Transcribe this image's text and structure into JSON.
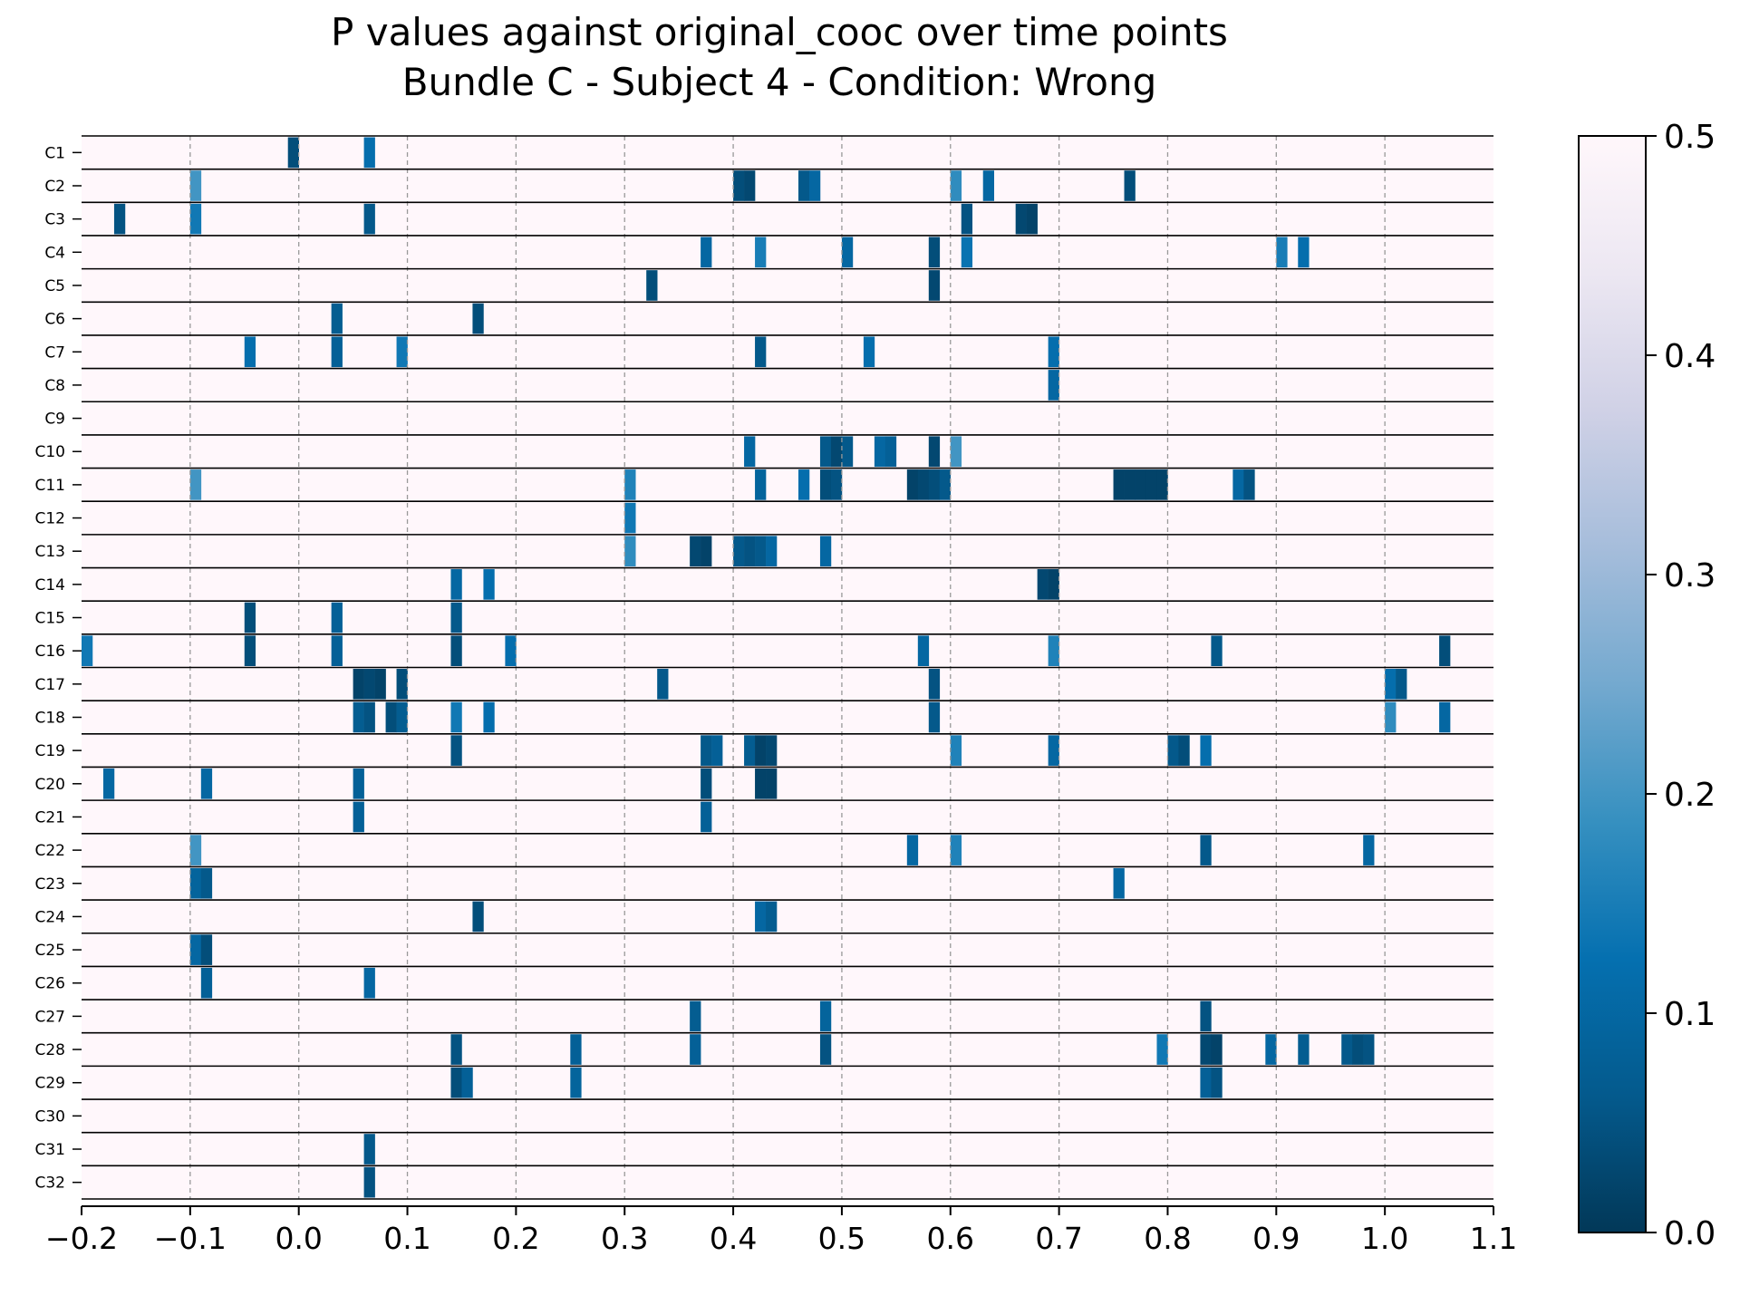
{
  "chart_data": {
    "type": "heatmap",
    "title": "P values against original_cooc over time points",
    "subtitle": "Bundle C - Subject 4 - Condition: Wrong",
    "xlabel": "",
    "ylabel": "",
    "xlim": [
      -0.2,
      1.1
    ],
    "x_ticks": [
      "−0.2",
      "−0.1",
      "0.0",
      "0.1",
      "0.2",
      "0.3",
      "0.4",
      "0.5",
      "0.6",
      "0.7",
      "0.8",
      "0.9",
      "1.0",
      "1.1"
    ],
    "x_tick_values": [
      -0.2,
      -0.1,
      0.0,
      0.1,
      0.2,
      0.3,
      0.4,
      0.5,
      0.6,
      0.7,
      0.8,
      0.9,
      1.0,
      1.1
    ],
    "vertical_gridlines": "dashed",
    "time_step": 0.01,
    "colorbar": {
      "range": [
        0.0,
        0.5
      ],
      "ticks": [
        "0.0",
        "0.1",
        "0.2",
        "0.3",
        "0.4",
        "0.5"
      ],
      "tick_values": [
        0.0,
        0.1,
        0.2,
        0.3,
        0.4,
        0.5
      ],
      "colormap": "PuBu_r",
      "colors": [
        "#023858",
        "#045a8d",
        "#0570b0",
        "#3690c0",
        "#74a9cf",
        "#a6bddb",
        "#d0d1e6",
        "#ece7f2",
        "#fff7fb"
      ],
      "placement": "right"
    },
    "background_value": 0.5,
    "rows": [
      {
        "label": "C1",
        "cells": [
          [
            -0.01,
            0.04
          ],
          [
            0.06,
            0.12
          ]
        ]
      },
      {
        "label": "C2",
        "cells": [
          [
            -0.1,
            0.2
          ],
          [
            0.4,
            0.04
          ],
          [
            0.41,
            0.03
          ],
          [
            0.46,
            0.06
          ],
          [
            0.47,
            0.1
          ],
          [
            0.6,
            0.18
          ],
          [
            0.63,
            0.1
          ],
          [
            0.76,
            0.04
          ]
        ]
      },
      {
        "label": "C3",
        "cells": [
          [
            -0.17,
            0.05
          ],
          [
            -0.1,
            0.14
          ],
          [
            0.06,
            0.06
          ],
          [
            0.61,
            0.05
          ],
          [
            0.66,
            0.03
          ],
          [
            0.67,
            0.02
          ]
        ]
      },
      {
        "label": "C4",
        "cells": [
          [
            0.37,
            0.1
          ],
          [
            0.42,
            0.15
          ],
          [
            0.5,
            0.1
          ],
          [
            0.58,
            0.04
          ],
          [
            0.61,
            0.13
          ],
          [
            0.9,
            0.15
          ],
          [
            0.92,
            0.12
          ]
        ]
      },
      {
        "label": "C5",
        "cells": [
          [
            0.32,
            0.04
          ],
          [
            0.58,
            0.03
          ]
        ]
      },
      {
        "label": "C6",
        "cells": [
          [
            0.03,
            0.07
          ],
          [
            0.16,
            0.04
          ]
        ]
      },
      {
        "label": "C7",
        "cells": [
          [
            -0.05,
            0.12
          ],
          [
            0.03,
            0.08
          ],
          [
            0.09,
            0.14
          ],
          [
            0.42,
            0.06
          ],
          [
            0.52,
            0.12
          ],
          [
            0.69,
            0.12
          ]
        ]
      },
      {
        "label": "C8",
        "cells": [
          [
            0.69,
            0.1
          ]
        ]
      },
      {
        "label": "C9",
        "cells": []
      },
      {
        "label": "C10",
        "cells": [
          [
            0.41,
            0.1
          ],
          [
            0.48,
            0.06
          ],
          [
            0.49,
            0.03
          ],
          [
            0.5,
            0.06
          ],
          [
            0.53,
            0.1
          ],
          [
            0.54,
            0.08
          ],
          [
            0.58,
            0.03
          ],
          [
            0.6,
            0.2
          ]
        ]
      },
      {
        "label": "C11",
        "cells": [
          [
            -0.1,
            0.2
          ],
          [
            0.3,
            0.16
          ],
          [
            0.42,
            0.09
          ],
          [
            0.46,
            0.12
          ],
          [
            0.48,
            0.04
          ],
          [
            0.49,
            0.05
          ],
          [
            0.56,
            0.02
          ],
          [
            0.57,
            0.03
          ],
          [
            0.58,
            0.04
          ],
          [
            0.59,
            0.06
          ],
          [
            0.75,
            0.02
          ],
          [
            0.76,
            0.02
          ],
          [
            0.77,
            0.02
          ],
          [
            0.78,
            0.02
          ],
          [
            0.79,
            0.02
          ],
          [
            0.86,
            0.1
          ],
          [
            0.87,
            0.05
          ]
        ]
      },
      {
        "label": "C12",
        "cells": [
          [
            0.3,
            0.14
          ]
        ]
      },
      {
        "label": "C13",
        "cells": [
          [
            0.3,
            0.18
          ],
          [
            0.36,
            0.03
          ],
          [
            0.37,
            0.02
          ],
          [
            0.4,
            0.06
          ],
          [
            0.41,
            0.05
          ],
          [
            0.42,
            0.06
          ],
          [
            0.43,
            0.1
          ],
          [
            0.48,
            0.1
          ]
        ]
      },
      {
        "label": "C14",
        "cells": [
          [
            0.14,
            0.1
          ],
          [
            0.17,
            0.12
          ],
          [
            0.68,
            0.03
          ],
          [
            0.69,
            0.02
          ]
        ]
      },
      {
        "label": "C15",
        "cells": [
          [
            -0.05,
            0.04
          ],
          [
            0.03,
            0.08
          ],
          [
            0.14,
            0.06
          ]
        ]
      },
      {
        "label": "C16",
        "cells": [
          [
            -0.2,
            0.14
          ],
          [
            -0.05,
            0.04
          ],
          [
            0.03,
            0.08
          ],
          [
            0.14,
            0.04
          ],
          [
            0.19,
            0.12
          ],
          [
            0.57,
            0.1
          ],
          [
            0.69,
            0.16
          ],
          [
            0.84,
            0.06
          ],
          [
            1.05,
            0.04
          ]
        ]
      },
      {
        "label": "C17",
        "cells": [
          [
            0.05,
            0.02
          ],
          [
            0.06,
            0.03
          ],
          [
            0.07,
            0.02
          ],
          [
            0.09,
            0.04
          ],
          [
            0.33,
            0.06
          ],
          [
            0.58,
            0.05
          ],
          [
            1.0,
            0.12
          ],
          [
            1.01,
            0.06
          ]
        ]
      },
      {
        "label": "C18",
        "cells": [
          [
            0.05,
            0.07
          ],
          [
            0.06,
            0.05
          ],
          [
            0.08,
            0.04
          ],
          [
            0.09,
            0.07
          ],
          [
            0.14,
            0.14
          ],
          [
            0.17,
            0.12
          ],
          [
            0.58,
            0.06
          ],
          [
            1.0,
            0.18
          ],
          [
            1.05,
            0.1
          ]
        ]
      },
      {
        "label": "C19",
        "cells": [
          [
            0.14,
            0.05
          ],
          [
            0.37,
            0.06
          ],
          [
            0.38,
            0.08
          ],
          [
            0.41,
            0.07
          ],
          [
            0.42,
            0.02
          ],
          [
            0.43,
            0.03
          ],
          [
            0.6,
            0.16
          ],
          [
            0.69,
            0.1
          ],
          [
            0.8,
            0.06
          ],
          [
            0.81,
            0.04
          ],
          [
            0.83,
            0.12
          ]
        ]
      },
      {
        "label": "C20",
        "cells": [
          [
            -0.18,
            0.1
          ],
          [
            -0.09,
            0.1
          ],
          [
            0.05,
            0.08
          ],
          [
            0.37,
            0.04
          ],
          [
            0.42,
            0.02
          ],
          [
            0.43,
            0.02
          ]
        ]
      },
      {
        "label": "C21",
        "cells": [
          [
            0.05,
            0.08
          ],
          [
            0.37,
            0.08
          ]
        ]
      },
      {
        "label": "C22",
        "cells": [
          [
            -0.1,
            0.2
          ],
          [
            0.56,
            0.1
          ],
          [
            0.6,
            0.16
          ],
          [
            0.83,
            0.06
          ],
          [
            0.98,
            0.1
          ]
        ]
      },
      {
        "label": "C23",
        "cells": [
          [
            -0.1,
            0.09
          ],
          [
            -0.09,
            0.06
          ],
          [
            0.75,
            0.1
          ]
        ]
      },
      {
        "label": "C24",
        "cells": [
          [
            0.16,
            0.04
          ],
          [
            0.42,
            0.1
          ],
          [
            0.43,
            0.07
          ]
        ]
      },
      {
        "label": "C25",
        "cells": [
          [
            -0.1,
            0.1
          ],
          [
            -0.09,
            0.04
          ]
        ]
      },
      {
        "label": "C26",
        "cells": [
          [
            -0.09,
            0.08
          ],
          [
            0.06,
            0.1
          ]
        ]
      },
      {
        "label": "C27",
        "cells": [
          [
            0.36,
            0.07
          ],
          [
            0.48,
            0.09
          ],
          [
            0.83,
            0.05
          ]
        ]
      },
      {
        "label": "C28",
        "cells": [
          [
            0.14,
            0.05
          ],
          [
            0.25,
            0.08
          ],
          [
            0.36,
            0.08
          ],
          [
            0.48,
            0.05
          ],
          [
            0.79,
            0.14
          ],
          [
            0.83,
            0.03
          ],
          [
            0.84,
            0.02
          ],
          [
            0.89,
            0.1
          ],
          [
            0.92,
            0.07
          ],
          [
            0.96,
            0.06
          ],
          [
            0.97,
            0.04
          ],
          [
            0.98,
            0.05
          ]
        ]
      },
      {
        "label": "C29",
        "cells": [
          [
            0.14,
            0.04
          ],
          [
            0.15,
            0.08
          ],
          [
            0.25,
            0.09
          ],
          [
            0.83,
            0.08
          ],
          [
            0.84,
            0.05
          ]
        ]
      },
      {
        "label": "C30",
        "cells": []
      },
      {
        "label": "C31",
        "cells": [
          [
            0.06,
            0.06
          ]
        ]
      },
      {
        "label": "C32",
        "cells": [
          [
            0.06,
            0.05
          ]
        ]
      }
    ]
  }
}
